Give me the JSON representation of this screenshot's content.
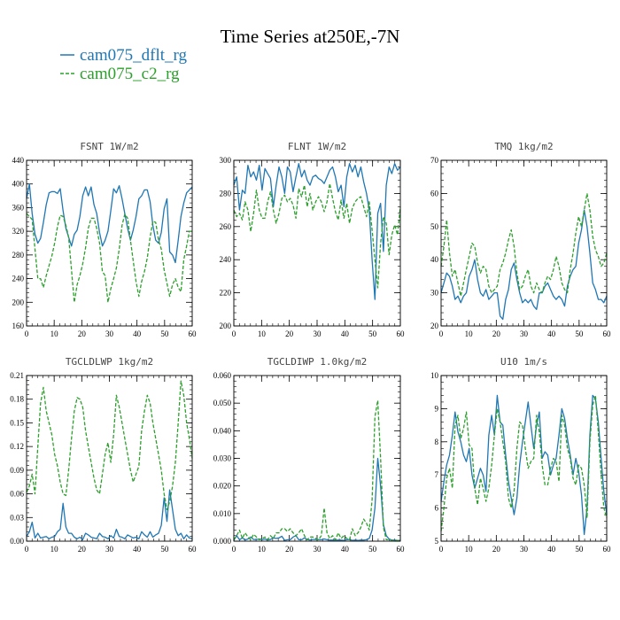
{
  "figure": {
    "title": "Time Series at250E,-7N",
    "legend": [
      {
        "name": "cam075_dflt_rg",
        "color": "#1f77b4",
        "dash": ""
      },
      {
        "name": "cam075_c2_rg",
        "color": "#2ca02c",
        "dash": "4,2"
      }
    ]
  },
  "chart_data": [
    {
      "type": "line",
      "title": "FSNT  1W/m2",
      "xlim": [
        0,
        60
      ],
      "ylim": [
        160,
        440
      ],
      "xticks": [
        0,
        10,
        20,
        30,
        40,
        50,
        60
      ],
      "yticks": [
        160,
        200,
        240,
        280,
        320,
        360,
        400,
        440
      ],
      "ytick_labels": [
        "160",
        "200",
        "240",
        "280",
        "320",
        "360",
        "400",
        "440"
      ],
      "series": [
        {
          "name": "cam075_dflt_rg",
          "values": [
            375,
            400,
            350,
            315,
            300,
            308,
            335,
            365,
            385,
            387,
            387,
            384,
            392,
            355,
            325,
            310,
            295,
            315,
            322,
            345,
            380,
            395,
            380,
            395,
            365,
            350,
            318,
            295,
            305,
            320,
            355,
            392,
            385,
            397,
            375,
            350,
            325,
            305,
            322,
            345,
            375,
            380,
            390,
            390,
            370,
            330,
            305,
            300,
            318,
            358,
            375,
            285,
            280,
            267,
            305,
            345,
            368,
            385,
            390,
            395
          ]
        },
        {
          "name": "cam075_c2_rg",
          "values": [
            350,
            345,
            340,
            290,
            240,
            240,
            225,
            245,
            262,
            278,
            300,
            328,
            347,
            345,
            330,
            310,
            255,
            200,
            230,
            245,
            265,
            292,
            325,
            342,
            342,
            325,
            300,
            252,
            245,
            200,
            223,
            240,
            258,
            290,
            330,
            349,
            342,
            305,
            270,
            235,
            210,
            235,
            252,
            275,
            310,
            337,
            335,
            305,
            290,
            255,
            232,
            210,
            230,
            240,
            225,
            218,
            272,
            295,
            320,
            320
          ]
        }
      ]
    },
    {
      "type": "line",
      "title": "FLNT  1W/m2",
      "xlim": [
        0,
        60
      ],
      "ylim": [
        200,
        300
      ],
      "xticks": [
        0,
        10,
        20,
        30,
        40,
        50,
        60
      ],
      "yticks": [
        200,
        220,
        240,
        260,
        280,
        300
      ],
      "ytick_labels": [
        "200",
        "220",
        "240",
        "260",
        "280",
        "300"
      ],
      "series": [
        {
          "name": "cam075_dflt_rg",
          "values": [
            285,
            290,
            270,
            282,
            280,
            297,
            290,
            293,
            288,
            297,
            282,
            295,
            292,
            289,
            272,
            285,
            296,
            290,
            280,
            296,
            293,
            281,
            290,
            298,
            290,
            294,
            288,
            285,
            290,
            291,
            289,
            288,
            286,
            290,
            294,
            296,
            290,
            281,
            285,
            272,
            290,
            298,
            293,
            297,
            290,
            296,
            287,
            280,
            270,
            240,
            216,
            268,
            274,
            245,
            285,
            296,
            292,
            298,
            294,
            296
          ]
        },
        {
          "name": "cam075_c2_rg",
          "values": [
            270,
            266,
            268,
            264,
            275,
            270,
            257,
            268,
            282,
            270,
            265,
            265,
            275,
            281,
            270,
            262,
            268,
            277,
            279,
            275,
            277,
            273,
            265,
            283,
            278,
            285,
            272,
            280,
            270,
            275,
            278,
            275,
            269,
            275,
            286,
            277,
            269,
            264,
            276,
            265,
            274,
            262,
            271,
            275,
            277,
            278,
            272,
            266,
            275,
            258,
            240,
            223,
            250,
            266,
            262,
            243,
            255,
            261,
            255,
            272
          ]
        }
      ]
    },
    {
      "type": "line",
      "title": "TMQ  1kg/m2",
      "xlim": [
        0,
        60
      ],
      "ylim": [
        20,
        70
      ],
      "xticks": [
        0,
        10,
        20,
        30,
        40,
        50,
        60
      ],
      "yticks": [
        20,
        30,
        40,
        50,
        60,
        70
      ],
      "ytick_labels": [
        "20",
        "30",
        "40",
        "50",
        "60",
        "70"
      ],
      "series": [
        {
          "name": "cam075_dflt_rg",
          "values": [
            30,
            33,
            36,
            35,
            32,
            28,
            29,
            27,
            29,
            30,
            35,
            37,
            40,
            34,
            30,
            29,
            31,
            28,
            29,
            30,
            30,
            23,
            22,
            28,
            31,
            37,
            39,
            34,
            30,
            27,
            28,
            27,
            28,
            26,
            25,
            30,
            30,
            32,
            33,
            31,
            29,
            28,
            29,
            28,
            26,
            32,
            35,
            37,
            38,
            45,
            49,
            55,
            50,
            42,
            33,
            31,
            28,
            28,
            27,
            29
          ]
        },
        {
          "name": "cam075_c2_rg",
          "values": [
            38,
            44,
            52,
            42,
            35,
            37,
            33,
            29,
            33,
            37,
            41,
            45,
            44,
            39,
            36,
            38,
            37,
            32,
            30,
            31,
            32,
            37,
            39,
            42,
            46,
            49,
            44,
            36,
            31,
            32,
            35,
            37,
            32,
            30,
            33,
            31,
            30,
            33,
            35,
            34,
            37,
            41,
            38,
            33,
            31,
            30,
            37,
            42,
            48,
            53,
            50,
            55,
            60,
            55,
            47,
            43,
            41,
            38,
            39,
            42
          ]
        }
      ]
    },
    {
      "type": "line",
      "title": "TGCLDLWP  1kg/m2",
      "xlim": [
        0,
        60
      ],
      "ylim": [
        0,
        0.21
      ],
      "xticks": [
        0,
        10,
        20,
        30,
        40,
        50,
        60
      ],
      "yticks": [
        0.0,
        0.03,
        0.06,
        0.09,
        0.12,
        0.15,
        0.18,
        0.21
      ],
      "ytick_labels": [
        "0.00",
        "0.03",
        "0.06",
        "0.09",
        "0.12",
        "0.15",
        "0.18",
        "0.21"
      ],
      "series": [
        {
          "name": "cam075_dflt_rg",
          "values": [
            0.006,
            0.012,
            0.024,
            0.004,
            0.01,
            0.004,
            0.005,
            0.006,
            0.003,
            0.005,
            0.006,
            0.012,
            0.015,
            0.048,
            0.018,
            0.01,
            0.01,
            0.005,
            0.003,
            0.005,
            0.002,
            0.01,
            0.008,
            0.005,
            0.004,
            0.003,
            0.01,
            0.006,
            0.005,
            0.003,
            0.007,
            0.004,
            0.015,
            0.006,
            0.005,
            0.003,
            0.008,
            0.006,
            0.004,
            0.005,
            0.003,
            0.012,
            0.008,
            0.005,
            0.012,
            0.005,
            0.008,
            0.01,
            0.02,
            0.055,
            0.025,
            0.065,
            0.04,
            0.015,
            0.007,
            0.01,
            0.003,
            0.008,
            0.004,
            0.003
          ]
        },
        {
          "name": "cam075_c2_rg",
          "values": [
            0.062,
            0.07,
            0.085,
            0.06,
            0.12,
            0.175,
            0.195,
            0.165,
            0.15,
            0.135,
            0.11,
            0.095,
            0.075,
            0.06,
            0.058,
            0.09,
            0.13,
            0.165,
            0.182,
            0.18,
            0.17,
            0.14,
            0.12,
            0.1,
            0.08,
            0.065,
            0.06,
            0.085,
            0.11,
            0.125,
            0.1,
            0.135,
            0.185,
            0.17,
            0.15,
            0.13,
            0.11,
            0.09,
            0.075,
            0.085,
            0.095,
            0.14,
            0.165,
            0.185,
            0.175,
            0.15,
            0.13,
            0.11,
            0.09,
            0.06,
            0.04,
            0.05,
            0.07,
            0.1,
            0.15,
            0.203,
            0.185,
            0.15,
            0.13,
            0.105
          ]
        }
      ]
    },
    {
      "type": "line",
      "title": "TGCLDIWP  1.0kg/m2",
      "xlim": [
        0,
        60
      ],
      "ylim": [
        0,
        0.06
      ],
      "xticks": [
        0,
        10,
        20,
        30,
        40,
        50,
        60
      ],
      "yticks": [
        0.0,
        0.01,
        0.02,
        0.03,
        0.04,
        0.05,
        0.06
      ],
      "ytick_labels": [
        "0.000",
        "0.010",
        "0.020",
        "0.030",
        "0.040",
        "0.050",
        "0.060"
      ],
      "series": [
        {
          "name": "cam075_dflt_rg",
          "values": [
            0.0003,
            0.002,
            0.0005,
            0.0012,
            0.0004,
            0.0008,
            0.0015,
            0.0006,
            0.0006,
            0.0008,
            0.0005,
            0.0008,
            0.0004,
            0.0006,
            0.0012,
            0.001,
            0.0012,
            0.0018,
            0.0003,
            0.0005,
            0.0005,
            0.0015,
            0.002,
            0.0005,
            0.0005,
            0.0012,
            0.0006,
            0.0004,
            0.0006,
            0.0006,
            0.0005,
            0.0005,
            0.0008,
            0.0005,
            0.0004,
            0.0004,
            0.0004,
            0.0004,
            0.0004,
            0.0003,
            0.0005,
            0.0006,
            0.0003,
            0.0004,
            0.0003,
            0.0004,
            0.0004,
            0.0005,
            0.001,
            0.004,
            0.012,
            0.03,
            0.02,
            0.006,
            0.002,
            0.0008,
            0.0004,
            0.0004,
            0.0003,
            0.0003
          ]
        },
        {
          "name": "cam075_c2_rg",
          "values": [
            0.0005,
            0.002,
            0.004,
            0.001,
            0.003,
            0.0015,
            0.0005,
            0.0025,
            0.0015,
            0.0005,
            0.001,
            0.0015,
            0.0005,
            0.002,
            0.001,
            0.003,
            0.003,
            0.0045,
            0.0045,
            0.0035,
            0.0045,
            0.003,
            0.002,
            0.003,
            0.0045,
            0.002,
            0.0005,
            0.0015,
            0.0015,
            0.001,
            0.0005,
            0.002,
            0.012,
            0.003,
            0.001,
            0.002,
            0.0005,
            0.003,
            0.001,
            0.002,
            0.001,
            0.0005,
            0.0045,
            0.002,
            0.003,
            0.005,
            0.008,
            0.0065,
            0.004,
            0.015,
            0.045,
            0.051,
            0.03,
            0.005,
            0.0005,
            0.0005,
            0.0003,
            0.0003,
            0.0003,
            0.0003
          ]
        }
      ]
    },
    {
      "type": "line",
      "title": "U10  1m/s",
      "xlim": [
        0,
        60
      ],
      "ylim": [
        5,
        10
      ],
      "xticks": [
        0,
        10,
        20,
        30,
        40,
        50,
        60
      ],
      "yticks": [
        5,
        6,
        7,
        8,
        9,
        10
      ],
      "ytick_labels": [
        "5",
        "6",
        "7",
        "8",
        "9",
        "10"
      ],
      "series": [
        {
          "name": "cam075_dflt_rg",
          "values": [
            6.2,
            6.8,
            7.3,
            7.6,
            8.2,
            8.9,
            8.3,
            8.0,
            7.6,
            7.4,
            7.8,
            7.0,
            6.6,
            6.9,
            7.2,
            7.0,
            6.5,
            8.2,
            8.8,
            8.2,
            9.4,
            8.6,
            8.5,
            7.6,
            6.8,
            6.3,
            5.8,
            6.3,
            7.3,
            8.0,
            8.6,
            9.2,
            8.5,
            7.8,
            8.5,
            8.9,
            7.5,
            7.7,
            7.6,
            7.0,
            7.3,
            7.5,
            8.2,
            9.0,
            8.7,
            8.1,
            7.6,
            7.0,
            7.5,
            7.1,
            6.4,
            5.2,
            6.0,
            8.2,
            9.4,
            9.3,
            8.6,
            7.5,
            6.5,
            5.8
          ]
        },
        {
          "name": "cam075_c2_rg",
          "values": [
            5.3,
            6.0,
            6.9,
            7.2,
            6.6,
            8.5,
            8.8,
            8.1,
            8.4,
            8.9,
            7.9,
            7.8,
            6.6,
            6.1,
            6.9,
            6.6,
            6.2,
            6.6,
            7.3,
            8.2,
            9.0,
            8.6,
            8.0,
            7.4,
            6.3,
            6.0,
            6.5,
            7.8,
            8.6,
            8.5,
            7.8,
            7.2,
            7.4,
            7.5,
            8.8,
            8.3,
            7.3,
            6.7,
            6.7,
            7.2,
            7.5,
            7.4,
            6.8,
            8.8,
            8.5,
            7.8,
            7.5,
            6.9,
            6.7,
            7.3,
            7.2,
            6.7,
            5.7,
            8.0,
            9.1,
            9.4,
            8.3,
            7.0,
            6.0,
            5.7
          ]
        }
      ]
    }
  ]
}
